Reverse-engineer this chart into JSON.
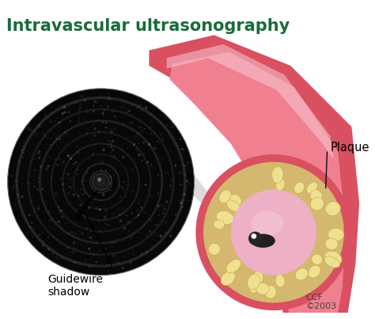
{
  "title": "Intravascular ultrasonography",
  "title_color": "#1a6b3a",
  "title_fontsize": 15,
  "bg_color": "#ffffff",
  "label_plaque": "Plaque",
  "label_guidewire": "Guidewire\nshadow",
  "label_ccf": "CCF\n©2003",
  "fig_width": 4.74,
  "fig_height": 4.03,
  "dpi": 100
}
